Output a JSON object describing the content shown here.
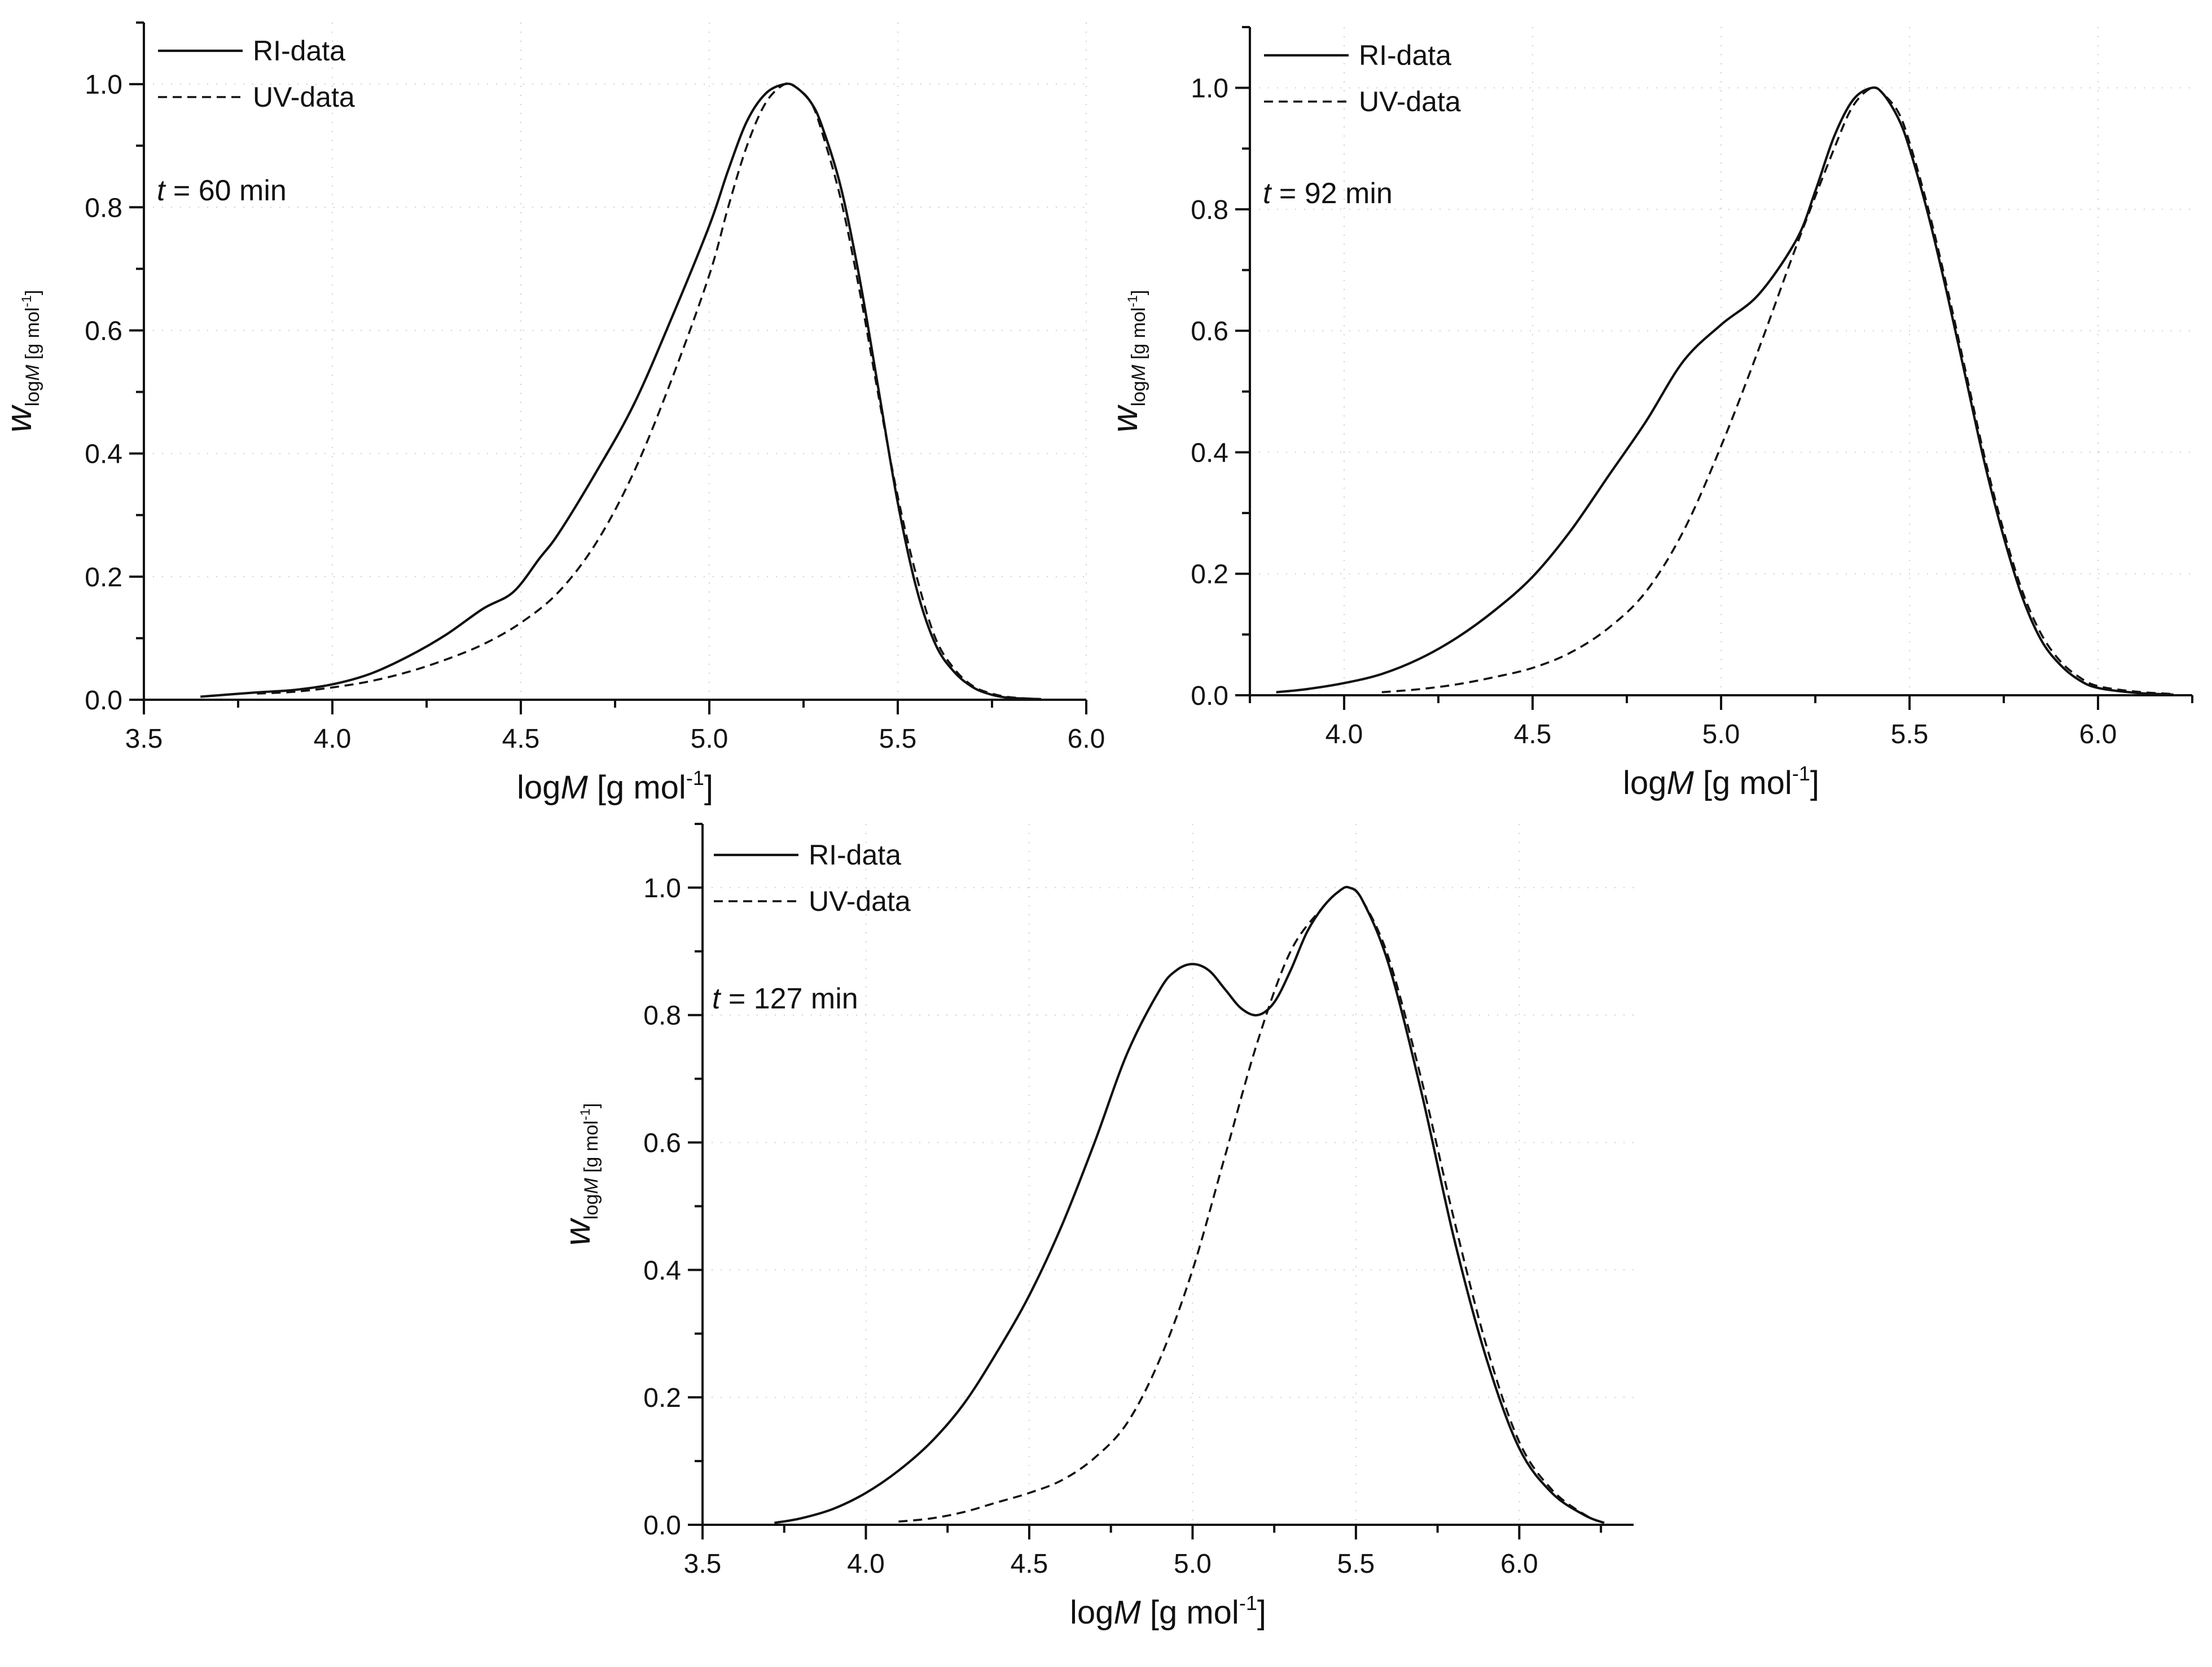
{
  "colors": {
    "background": "#ffffff",
    "ink": "#111111"
  },
  "chart_data": [
    {
      "type": "line",
      "annotation": "t = 60 min",
      "annotation_var": "t",
      "annotation_rest": " = 60 min",
      "xlabel": {
        "prefix": "log",
        "italic": "M",
        "unit": " [g mol",
        "sup": "-1",
        "close": "]"
      },
      "ylabel": {
        "main": "w",
        "sub_prefix": "log",
        "sub_italic": "M",
        "sub_unit": " [g mol",
        "sub_sup": "-1",
        "sub_close": "]"
      },
      "xlim": [
        3.5,
        6.0
      ],
      "ylim": [
        0.0,
        1.1
      ],
      "xticks": [
        3.5,
        4.0,
        4.5,
        5.0,
        5.5,
        6.0
      ],
      "xtick_labels": [
        "3.5",
        "4.0",
        "4.5",
        "5.0",
        "5.5",
        "6.0"
      ],
      "yticks": [
        0.0,
        0.2,
        0.4,
        0.6,
        0.8,
        1.0
      ],
      "ytick_labels": [
        "0.0",
        "0.2",
        "0.4",
        "0.6",
        "0.8",
        "1.0"
      ],
      "legend": [
        "RI-data",
        "UV-data"
      ],
      "series": [
        {
          "name": "RI-data",
          "style": "solid",
          "x": [
            3.65,
            3.8,
            3.9,
            4.0,
            4.1,
            4.2,
            4.3,
            4.4,
            4.48,
            4.55,
            4.6,
            4.7,
            4.8,
            4.9,
            5.0,
            5.05,
            5.1,
            5.15,
            5.2,
            5.23,
            5.27,
            5.3,
            5.35,
            5.4,
            5.45,
            5.5,
            5.55,
            5.6,
            5.65,
            5.7,
            5.75,
            5.8,
            5.88
          ],
          "y": [
            0.005,
            0.012,
            0.016,
            0.025,
            0.042,
            0.07,
            0.105,
            0.148,
            0.175,
            0.23,
            0.27,
            0.37,
            0.48,
            0.62,
            0.77,
            0.86,
            0.94,
            0.985,
            1.0,
            0.995,
            0.97,
            0.93,
            0.83,
            0.68,
            0.5,
            0.32,
            0.18,
            0.09,
            0.045,
            0.02,
            0.008,
            0.003,
            0.001
          ]
        },
        {
          "name": "UV-data",
          "style": "dashed",
          "x": [
            3.8,
            3.9,
            4.0,
            4.1,
            4.2,
            4.3,
            4.4,
            4.5,
            4.6,
            4.7,
            4.8,
            4.9,
            5.0,
            5.05,
            5.1,
            5.15,
            5.2,
            5.23,
            5.27,
            5.3,
            5.35,
            5.4,
            5.45,
            5.5,
            5.55,
            5.6,
            5.65,
            5.7,
            5.75,
            5.8,
            5.88
          ],
          "y": [
            0.01,
            0.013,
            0.02,
            0.03,
            0.045,
            0.065,
            0.09,
            0.125,
            0.175,
            0.255,
            0.37,
            0.52,
            0.69,
            0.8,
            0.9,
            0.97,
            1.0,
            0.995,
            0.97,
            0.92,
            0.81,
            0.66,
            0.49,
            0.33,
            0.2,
            0.1,
            0.05,
            0.022,
            0.01,
            0.004,
            0.001
          ]
        }
      ]
    },
    {
      "type": "line",
      "annotation": "t = 92 min",
      "annotation_var": "t",
      "annotation_rest": " = 92 min",
      "xlabel": {
        "prefix": "log",
        "italic": "M",
        "unit": " [g mol",
        "sup": "-1",
        "close": "]"
      },
      "ylabel": {
        "main": "w",
        "sub_prefix": "log",
        "sub_italic": "M",
        "sub_unit": " [g mol",
        "sub_sup": "-1",
        "sub_close": "]"
      },
      "xlim": [
        3.75,
        6.25
      ],
      "ylim": [
        0.0,
        1.1
      ],
      "xticks": [
        4.0,
        4.5,
        5.0,
        5.5,
        6.0
      ],
      "xtick_labels": [
        "4.0",
        "4.5",
        "5.0",
        "5.5",
        "6.0"
      ],
      "yticks": [
        0.0,
        0.2,
        0.4,
        0.6,
        0.8,
        1.0
      ],
      "ytick_labels": [
        "0.0",
        "0.2",
        "0.4",
        "0.6",
        "0.8",
        "1.0"
      ],
      "legend": [
        "RI-data",
        "UV-data"
      ],
      "series": [
        {
          "name": "RI-data",
          "style": "solid",
          "x": [
            3.82,
            3.9,
            4.0,
            4.1,
            4.2,
            4.3,
            4.4,
            4.5,
            4.6,
            4.7,
            4.8,
            4.9,
            5.0,
            5.1,
            5.2,
            5.25,
            5.3,
            5.35,
            5.4,
            5.43,
            5.47,
            5.5,
            5.55,
            5.6,
            5.65,
            5.7,
            5.75,
            5.8,
            5.85,
            5.9,
            5.95,
            6.0,
            6.1,
            6.2
          ],
          "y": [
            0.005,
            0.01,
            0.02,
            0.035,
            0.06,
            0.095,
            0.14,
            0.195,
            0.27,
            0.36,
            0.45,
            0.55,
            0.61,
            0.66,
            0.75,
            0.83,
            0.92,
            0.98,
            1.0,
            0.99,
            0.95,
            0.9,
            0.79,
            0.66,
            0.52,
            0.38,
            0.26,
            0.16,
            0.09,
            0.05,
            0.025,
            0.012,
            0.004,
            0.001
          ]
        },
        {
          "name": "UV-data",
          "style": "dashed",
          "x": [
            4.1,
            4.2,
            4.3,
            4.4,
            4.5,
            4.6,
            4.7,
            4.8,
            4.9,
            5.0,
            5.1,
            5.2,
            5.3,
            5.35,
            5.4,
            5.43,
            5.47,
            5.5,
            5.55,
            5.6,
            5.65,
            5.7,
            5.75,
            5.8,
            5.85,
            5.9,
            5.95,
            6.0,
            6.1,
            6.2
          ],
          "y": [
            0.005,
            0.01,
            0.018,
            0.03,
            0.045,
            0.07,
            0.11,
            0.17,
            0.27,
            0.41,
            0.57,
            0.74,
            0.9,
            0.97,
            1.0,
            0.99,
            0.96,
            0.91,
            0.8,
            0.67,
            0.53,
            0.39,
            0.27,
            0.17,
            0.1,
            0.056,
            0.03,
            0.015,
            0.006,
            0.002
          ]
        }
      ]
    },
    {
      "type": "line",
      "annotation": "t = 127 min",
      "annotation_var": "t",
      "annotation_rest": " = 127 min",
      "xlabel": {
        "prefix": "log",
        "italic": "M",
        "unit": " [g mol",
        "sup": "-1",
        "close": "]"
      },
      "ylabel": {
        "main": "w",
        "sub_prefix": "log",
        "sub_italic": "M",
        "sub_unit": " [g mol",
        "sub_sup": "-1",
        "sub_close": "]"
      },
      "xlim": [
        3.5,
        6.35
      ],
      "ylim": [
        0.0,
        1.1
      ],
      "xticks": [
        3.5,
        4.0,
        4.5,
        5.0,
        5.5,
        6.0
      ],
      "xtick_labels": [
        "3.5",
        "4.0",
        "4.5",
        "5.0",
        "5.5",
        "6.0"
      ],
      "yticks": [
        0.0,
        0.2,
        0.4,
        0.6,
        0.8,
        1.0
      ],
      "ytick_labels": [
        "0.0",
        "0.2",
        "0.4",
        "0.6",
        "0.8",
        "1.0"
      ],
      "legend": [
        "RI-data",
        "UV-data"
      ],
      "series": [
        {
          "name": "RI-data",
          "style": "solid",
          "x": [
            3.72,
            3.8,
            3.9,
            4.0,
            4.1,
            4.2,
            4.3,
            4.4,
            4.5,
            4.6,
            4.7,
            4.8,
            4.9,
            4.95,
            5.0,
            5.05,
            5.1,
            5.15,
            5.2,
            5.25,
            5.3,
            5.35,
            5.4,
            5.45,
            5.48,
            5.52,
            5.6,
            5.7,
            5.8,
            5.9,
            6.0,
            6.1,
            6.2,
            6.26
          ],
          "y": [
            0.003,
            0.01,
            0.025,
            0.05,
            0.085,
            0.13,
            0.19,
            0.27,
            0.36,
            0.47,
            0.6,
            0.74,
            0.84,
            0.87,
            0.88,
            0.87,
            0.84,
            0.81,
            0.8,
            0.82,
            0.87,
            0.93,
            0.97,
            0.995,
            1.0,
            0.98,
            0.88,
            0.68,
            0.45,
            0.26,
            0.12,
            0.05,
            0.015,
            0.003
          ]
        },
        {
          "name": "UV-data",
          "style": "dashed",
          "x": [
            4.1,
            4.2,
            4.3,
            4.4,
            4.5,
            4.6,
            4.7,
            4.8,
            4.9,
            5.0,
            5.1,
            5.2,
            5.3,
            5.4,
            5.45,
            5.48,
            5.52,
            5.6,
            5.7,
            5.8,
            5.9,
            6.0,
            6.1,
            6.2,
            6.26
          ],
          "y": [
            0.005,
            0.01,
            0.02,
            0.035,
            0.05,
            0.07,
            0.105,
            0.16,
            0.26,
            0.4,
            0.58,
            0.76,
            0.9,
            0.97,
            0.995,
            1.0,
            0.98,
            0.89,
            0.7,
            0.48,
            0.28,
            0.13,
            0.055,
            0.016,
            0.003
          ]
        }
      ]
    }
  ]
}
